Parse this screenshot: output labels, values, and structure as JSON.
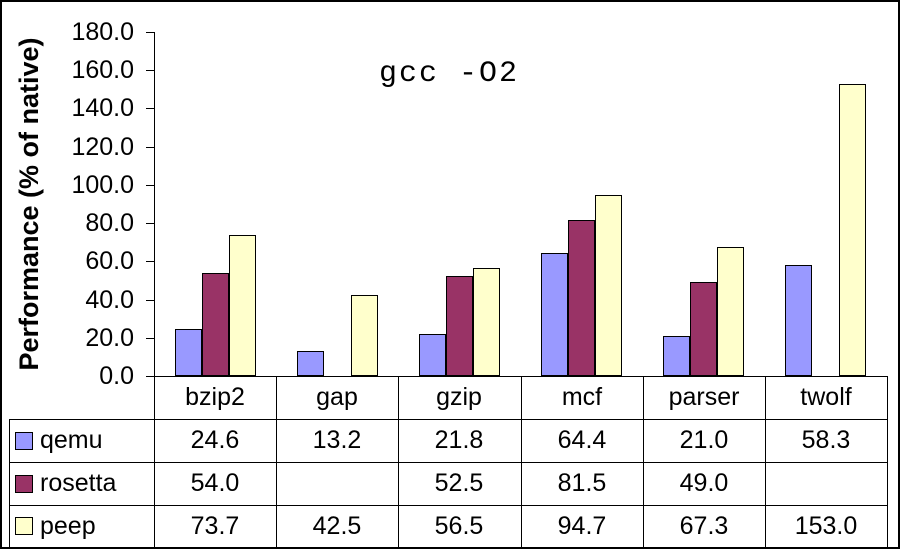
{
  "chart_data": {
    "type": "bar",
    "title": "gcc -O2",
    "ylabel": "Performance (% of native)",
    "xlabel": "",
    "ylim": [
      0,
      180
    ],
    "ytick_step": 20,
    "ytick_format": "one_decimal",
    "grid": false,
    "legend_position": "left-of-data-table",
    "categories": [
      "bzip2",
      "gap",
      "gzip",
      "mcf",
      "parser",
      "twolf"
    ],
    "series": [
      {
        "name": "qemu",
        "color": "#9999FF",
        "values": [
          24.6,
          13.2,
          21.8,
          64.4,
          21.0,
          58.3
        ]
      },
      {
        "name": "rosetta",
        "color": "#993366",
        "values": [
          54.0,
          null,
          52.5,
          81.5,
          49.0,
          null
        ]
      },
      {
        "name": "peep",
        "color": "#FFFFCC",
        "values": [
          73.7,
          42.5,
          56.5,
          94.7,
          67.3,
          153.0
        ]
      }
    ],
    "data_table": {
      "shown": true,
      "corner_cell": "",
      "blank_cell": ""
    },
    "colors": {
      "background": "#FFFFFF",
      "axis": "#000000",
      "bar_border": "#000000",
      "text": "#000000"
    }
  }
}
